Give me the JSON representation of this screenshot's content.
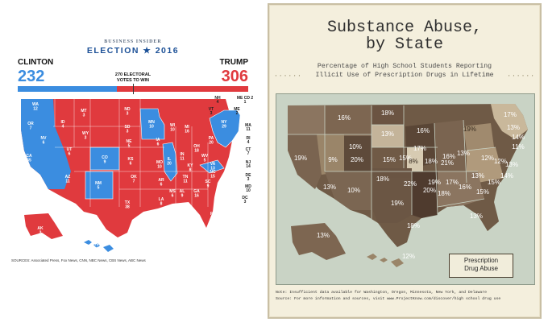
{
  "election": {
    "brand": "BUSINESS INSIDER",
    "title": "ELECTION ★ 2016",
    "left_name": "CLINTON",
    "left_votes": "232",
    "right_name": "TRUMP",
    "right_votes": "306",
    "win_line1": "270 ELECTORAL",
    "win_line2": "VOTES TO WIN",
    "clinton_fraction": 0.431,
    "trump_fraction": 0.569,
    "colors": {
      "clinton": "#3b8de0",
      "trump": "#e03a3e"
    },
    "states": [
      {
        "l": "WA",
        "v": "12",
        "p": "D"
      },
      {
        "l": "OR",
        "v": "7",
        "p": "D"
      },
      {
        "l": "CA",
        "v": "55",
        "p": "D"
      },
      {
        "l": "NV",
        "v": "6",
        "p": "D"
      },
      {
        "l": "ID",
        "v": "4",
        "p": "R"
      },
      {
        "l": "MT",
        "v": "3",
        "p": "R"
      },
      {
        "l": "WY",
        "v": "3",
        "p": "R"
      },
      {
        "l": "UT",
        "v": "6",
        "p": "R"
      },
      {
        "l": "AZ",
        "v": "11",
        "p": "R"
      },
      {
        "l": "CO",
        "v": "9",
        "p": "D"
      },
      {
        "l": "NM",
        "v": "5",
        "p": "D"
      },
      {
        "l": "ND",
        "v": "3",
        "p": "R"
      },
      {
        "l": "SD",
        "v": "3",
        "p": "R"
      },
      {
        "l": "NE",
        "v": "5",
        "p": "R"
      },
      {
        "l": "KS",
        "v": "6",
        "p": "R"
      },
      {
        "l": "OK",
        "v": "7",
        "p": "R"
      },
      {
        "l": "TX",
        "v": "38",
        "p": "R"
      },
      {
        "l": "MN",
        "v": "10",
        "p": "D"
      },
      {
        "l": "IA",
        "v": "6",
        "p": "R"
      },
      {
        "l": "MO",
        "v": "10",
        "p": "R"
      },
      {
        "l": "AR",
        "v": "6",
        "p": "R"
      },
      {
        "l": "LA",
        "v": "8",
        "p": "R"
      },
      {
        "l": "WI",
        "v": "10",
        "p": "R"
      },
      {
        "l": "IL",
        "v": "20",
        "p": "D"
      },
      {
        "l": "MI",
        "v": "16",
        "p": "R"
      },
      {
        "l": "IN",
        "v": "11",
        "p": "R"
      },
      {
        "l": "OH",
        "v": "18",
        "p": "R"
      },
      {
        "l": "KY",
        "v": "8",
        "p": "R"
      },
      {
        "l": "TN",
        "v": "11",
        "p": "R"
      },
      {
        "l": "MS",
        "v": "6",
        "p": "R"
      },
      {
        "l": "AL",
        "v": "9",
        "p": "R"
      },
      {
        "l": "GA",
        "v": "16",
        "p": "R"
      },
      {
        "l": "FL",
        "v": "29",
        "p": "R"
      },
      {
        "l": "SC",
        "v": "9",
        "p": "R"
      },
      {
        "l": "NC",
        "v": "15",
        "p": "R"
      },
      {
        "l": "VA",
        "v": "13",
        "p": "D"
      },
      {
        "l": "WV",
        "v": "5",
        "p": "R"
      },
      {
        "l": "PA",
        "v": "20",
        "p": "R"
      },
      {
        "l": "NY",
        "v": "29",
        "p": "D"
      },
      {
        "l": "AK",
        "v": "3",
        "p": "R"
      },
      {
        "l": "HI",
        "v": "4",
        "p": "D"
      }
    ],
    "east_labels": [
      {
        "l": "NH",
        "v": "4"
      },
      {
        "l": "ME CD 2",
        "v": "1"
      },
      {
        "l": "VT",
        "v": "3"
      },
      {
        "l": "ME",
        "v": "2"
      },
      {
        "l": "MA",
        "v": "11"
      },
      {
        "l": "RI",
        "v": "4"
      },
      {
        "l": "CT",
        "v": "7"
      },
      {
        "l": "NJ",
        "v": "14"
      },
      {
        "l": "DE",
        "v": "3"
      },
      {
        "l": "MD",
        "v": "10"
      },
      {
        "l": "DC",
        "v": "3"
      }
    ],
    "sources": "SOURCES: Associated Press, Fox News, CNN, NBC News, CBS News, ABC News"
  },
  "abuse": {
    "title_line1": "Substance Abuse,",
    "title_line2": "by State",
    "sub_line1": "Percentage of High School Students Reporting",
    "sub_line2": "Illicit Use of Prescription Drugs in Lifetime",
    "legend_line1": "Prescription",
    "legend_line2": "Drug Abuse",
    "note": "Note: Insufficient data available for Washington, Oregon, Minnesota, New York, and Delaware",
    "source": "Source: For more information and sources, visit www.ProjectKnow.com/discover/high school drug use",
    "values": [
      "16%",
      "18%",
      "13%",
      "16%",
      "19%",
      "10%",
      "17%",
      "15%",
      "16%",
      "17%",
      "19%",
      "9%",
      "20%",
      "15%",
      "8%",
      "18%",
      "21%",
      "13%",
      "12%",
      "13%",
      "14%",
      "11%",
      "12%",
      "13%",
      "15%",
      "18%",
      "22%",
      "19%",
      "17%",
      "16%",
      "20%",
      "18%",
      "13%",
      "13%",
      "10%",
      "15%",
      "19%",
      "18%",
      "13%",
      "14%",
      "13%",
      "12%"
    ]
  }
}
